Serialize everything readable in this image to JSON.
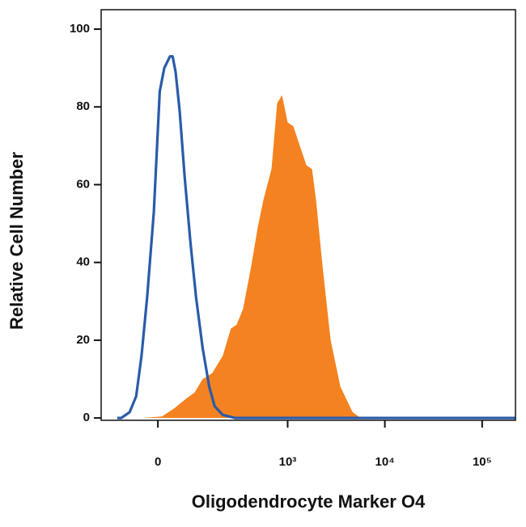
{
  "chart_data": {
    "type": "line",
    "xlabel": "Oligodendrocyte Marker O4",
    "ylabel": "Relative Cell Number",
    "xscale": "arcsinh",
    "xlim": [
      -166,
      220000
    ],
    "ylim": [
      -0.6,
      105
    ],
    "xticks": [
      0,
      {
        "value": 1000,
        "label": "10³"
      },
      {
        "value": 10000,
        "label": "10⁴"
      },
      {
        "value": 100000,
        "label": "10⁵"
      }
    ],
    "yticks": [
      0,
      20,
      40,
      60,
      80,
      100
    ],
    "series": [
      {
        "color": "#f58220",
        "filled": true,
        "x": [
          -37,
          9,
          37,
          67,
          91,
          118,
          155,
          206,
          253,
          292,
          342,
          418,
          489,
          560,
          680,
          779,
          875,
          1000,
          1145,
          1336,
          1558,
          1782,
          1962,
          2288,
          2772,
          3497,
          4660,
          5636,
          220000
        ],
        "values": [
          0,
          0.4,
          2.5,
          5,
          6.5,
          10,
          11.5,
          16,
          23,
          24,
          28,
          39,
          49,
          56,
          64,
          81,
          83,
          76,
          75,
          70,
          65,
          64,
          56,
          39,
          20,
          8,
          1.5,
          0,
          0
        ]
      },
      {
        "color": "#2a5ba8",
        "filled": false,
        "x": [
          -104,
          -91,
          -67,
          -50,
          -37,
          -24,
          -9,
          4,
          14,
          27,
          33,
          40,
          50,
          63,
          79,
          96,
          118,
          143,
          166,
          206,
          281,
          220000
        ],
        "values": [
          0,
          0,
          1.5,
          5.6,
          16,
          31,
          53,
          84,
          90,
          93,
          93,
          89,
          79,
          62,
          45,
          31,
          18,
          8,
          3,
          0.8,
          0,
          0
        ]
      }
    ]
  }
}
